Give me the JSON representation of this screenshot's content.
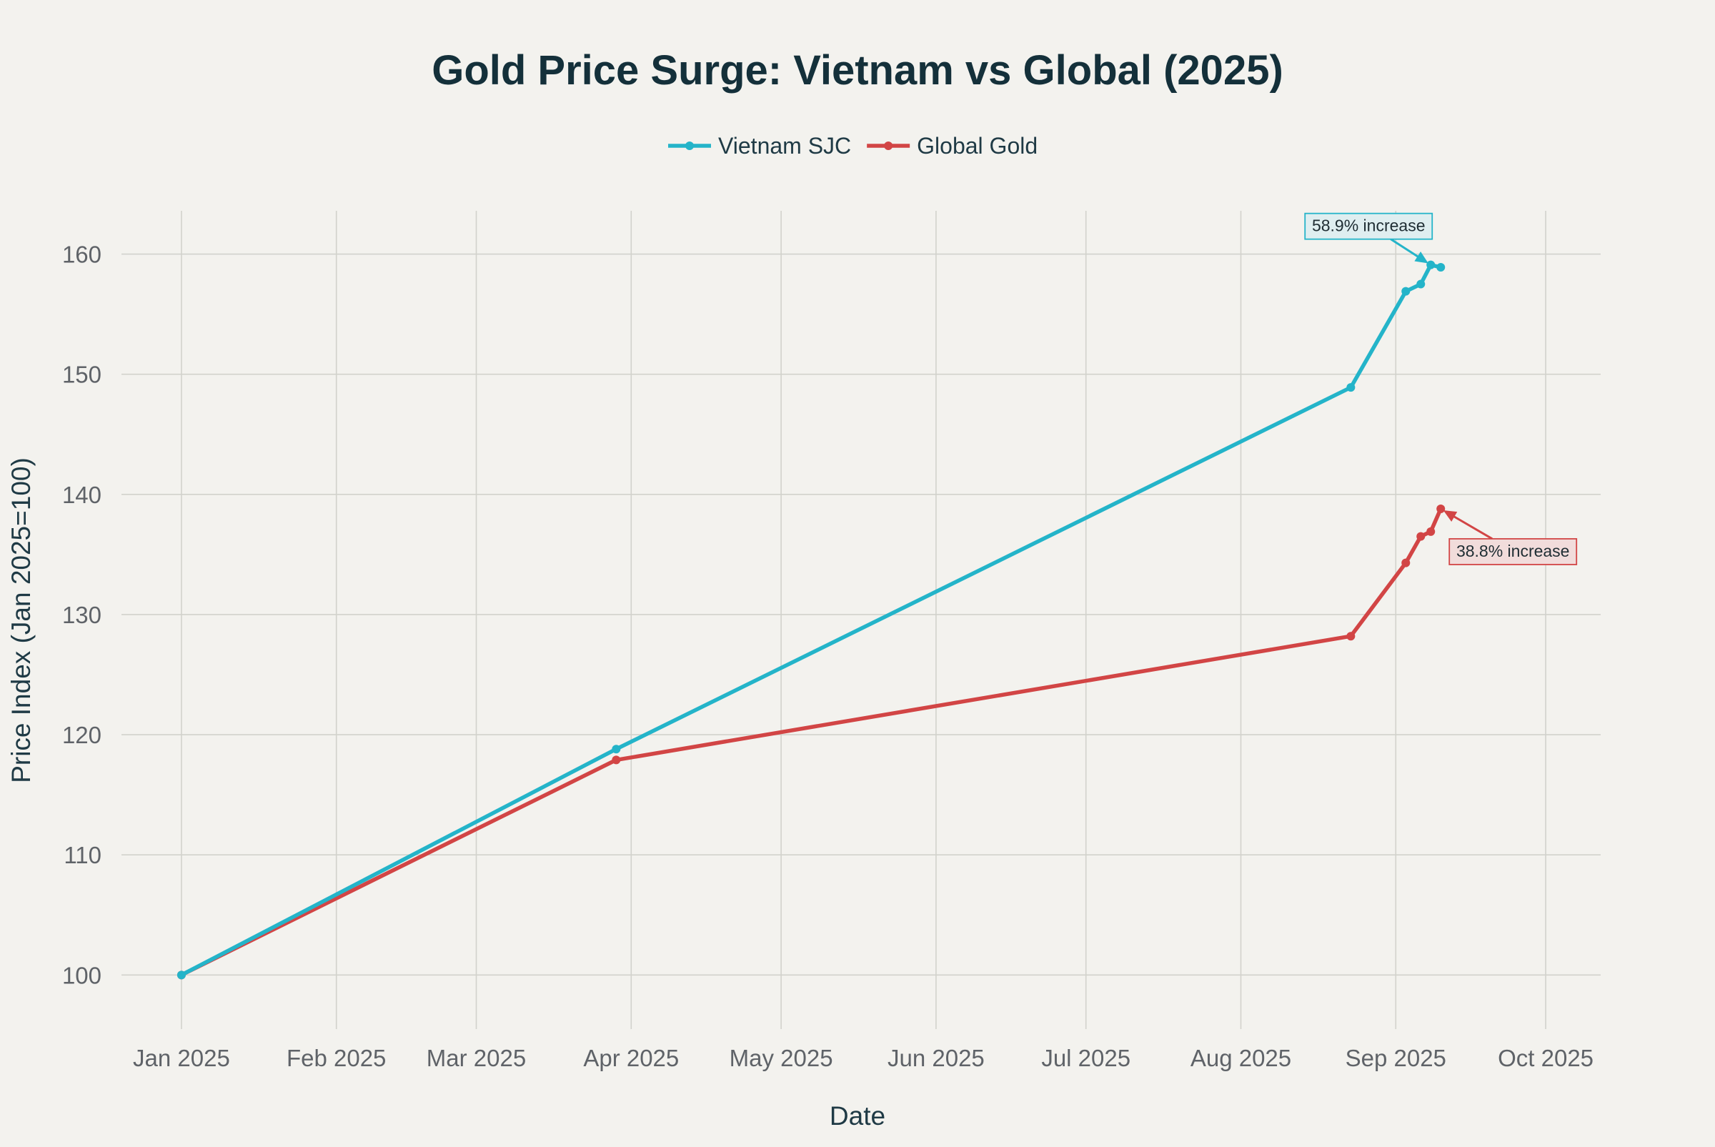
{
  "chart_data": {
    "type": "line",
    "title": "Gold Price Surge: Vietnam vs Global (2025)",
    "xlabel": "Date",
    "ylabel": "Price Index (Jan 2025=100)",
    "x_tick_labels": [
      "Jan 2025",
      "Feb 2025",
      "Mar 2025",
      "Apr 2025",
      "May 2025",
      "Jun 2025",
      "Jul 2025",
      "Aug 2025",
      "Sep 2025",
      "Oct 2025"
    ],
    "x_ticks": [
      "2025-01-01",
      "2025-02-01",
      "2025-03-01",
      "2025-04-01",
      "2025-05-01",
      "2025-06-01",
      "2025-07-01",
      "2025-08-01",
      "2025-09-01",
      "2025-10-01"
    ],
    "xlim": [
      "2024-12-20",
      "2025-10-12"
    ],
    "y_ticks": [
      100,
      110,
      120,
      130,
      140,
      150,
      160
    ],
    "ylim": [
      95.5,
      163.6
    ],
    "grid": true,
    "legend_position": "top-center",
    "series": [
      {
        "name": "Vietnam SJC",
        "color": "#24b4c9",
        "x": [
          "2025-01-01",
          "2025-03-29",
          "2025-08-23",
          "2025-09-03",
          "2025-09-06",
          "2025-09-08",
          "2025-09-10"
        ],
        "y": [
          100,
          118.8,
          148.9,
          156.9,
          157.5,
          159.1,
          158.9
        ]
      },
      {
        "name": "Global Gold",
        "color": "#d24545",
        "x": [
          "2025-01-01",
          "2025-03-29",
          "2025-08-23",
          "2025-09-03",
          "2025-09-06",
          "2025-09-08",
          "2025-09-10"
        ],
        "y": [
          100,
          117.9,
          128.2,
          134.3,
          136.5,
          136.9,
          138.8
        ]
      }
    ],
    "annotations": [
      {
        "text": "58.9% increase",
        "x": "2025-09-08",
        "y": 159.1,
        "color": "#24b4c9",
        "background": "#dfeef0",
        "position": "above-left"
      },
      {
        "text": "38.8% increase",
        "x": "2025-09-10",
        "y": 138.8,
        "color": "#d24545",
        "background": "#f1dcdb",
        "position": "below-right"
      }
    ]
  }
}
